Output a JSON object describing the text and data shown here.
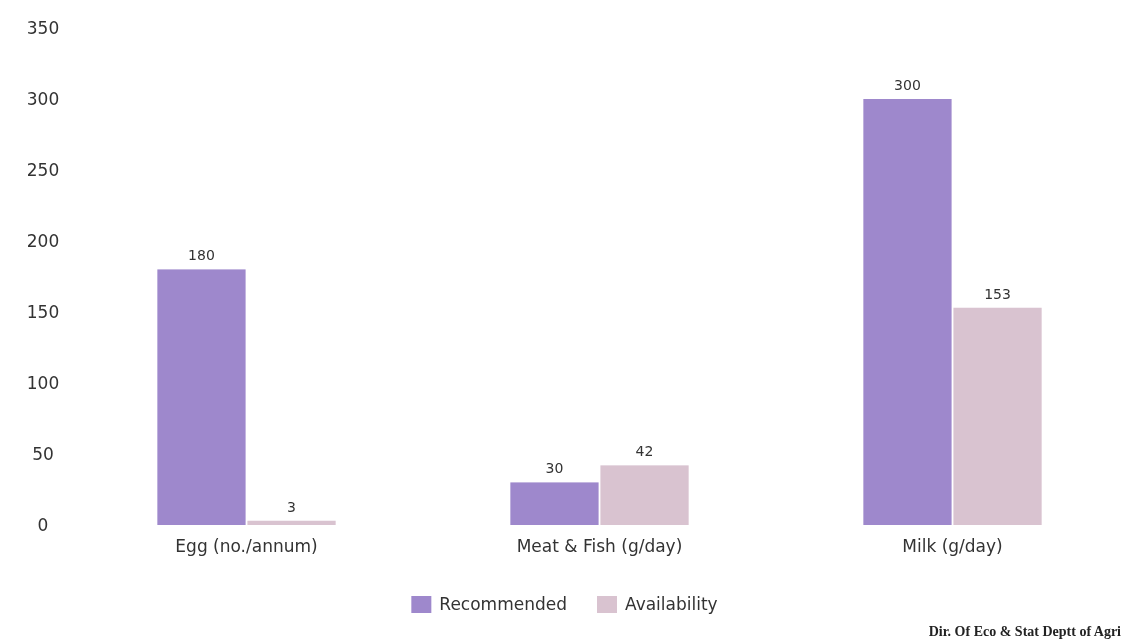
{
  "chart_data": {
    "type": "bar",
    "categories": [
      "Egg (no./annum)",
      "Meat & Fish (g/day)",
      "Milk (g/day)"
    ],
    "series": [
      {
        "name": "Recommended",
        "color": "#9e88cc",
        "values": [
          180,
          30,
          300
        ]
      },
      {
        "name": "Availability",
        "color": "#d9c3d0",
        "values": [
          3,
          42,
          153
        ]
      }
    ],
    "ylim": [
      0,
      350
    ],
    "yticks": [
      0,
      50,
      100,
      150,
      200,
      250,
      300,
      350
    ],
    "grid": false,
    "legend": "bottom",
    "data_labels": true,
    "annotations": [
      "Dir. Of Eco & Stat Deptt of Agri"
    ]
  }
}
